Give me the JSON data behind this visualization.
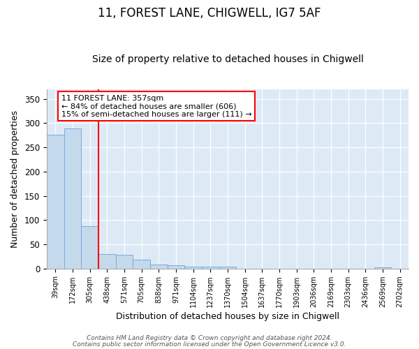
{
  "title": "11, FOREST LANE, CHIGWELL, IG7 5AF",
  "subtitle": "Size of property relative to detached houses in Chigwell",
  "xlabel": "Distribution of detached houses by size in Chigwell",
  "ylabel": "Number of detached properties",
  "footnote1": "Contains HM Land Registry data © Crown copyright and database right 2024.",
  "footnote2": "Contains public sector information licensed under the Open Government Licence v3.0.",
  "annotation_line1": "11 FOREST LANE: 357sqm",
  "annotation_line2": "← 84% of detached houses are smaller (606)",
  "annotation_line3": "15% of semi-detached houses are larger (111) →",
  "categories": [
    "39sqm",
    "172sqm",
    "305sqm",
    "438sqm",
    "571sqm",
    "705sqm",
    "838sqm",
    "971sqm",
    "1104sqm",
    "1237sqm",
    "1370sqm",
    "1504sqm",
    "1637sqm",
    "1770sqm",
    "1903sqm",
    "2036sqm",
    "2169sqm",
    "2303sqm",
    "2436sqm",
    "2569sqm",
    "2702sqm"
  ],
  "values": [
    276,
    289,
    88,
    30,
    29,
    19,
    8,
    7,
    4,
    4,
    4,
    0,
    0,
    0,
    0,
    0,
    0,
    0,
    0,
    3,
    0
  ],
  "bar_color": "#c5d9ed",
  "bar_edge_color": "#7aabda",
  "red_line_x": 2.5,
  "ylim": [
    0,
    370
  ],
  "yticks": [
    0,
    50,
    100,
    150,
    200,
    250,
    300,
    350
  ],
  "bg_color": "#ddeaf6",
  "grid_color": "#ffffff",
  "title_fontsize": 12,
  "subtitle_fontsize": 10,
  "footnote_fontsize": 6.5
}
